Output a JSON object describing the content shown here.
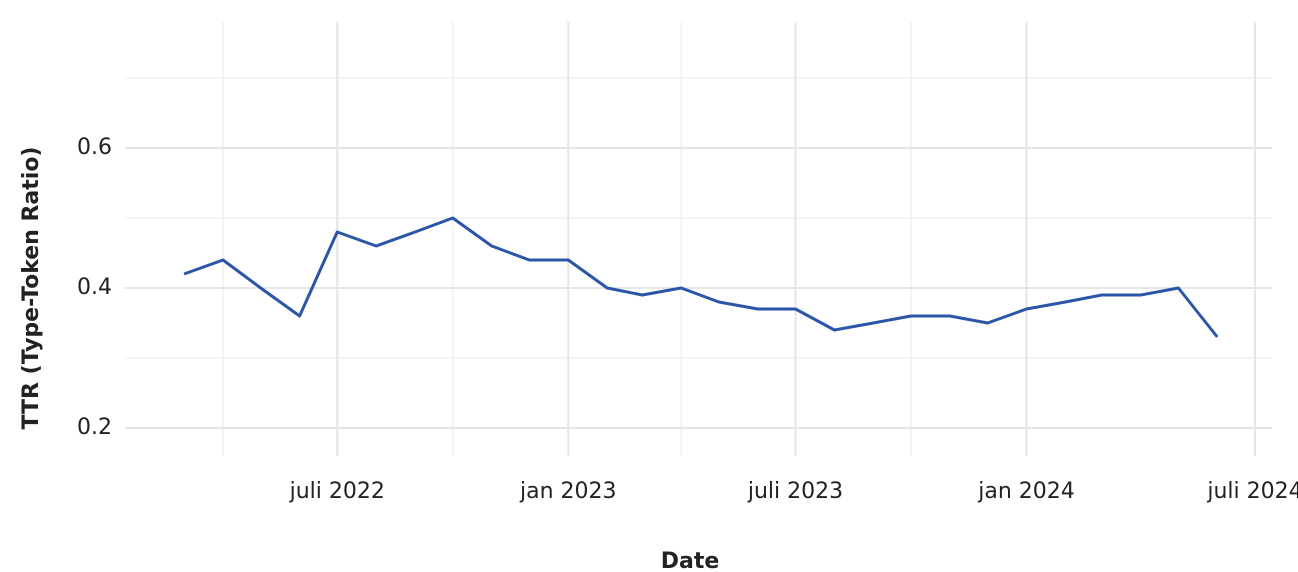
{
  "chart_data": {
    "type": "line",
    "x_title": "Date",
    "y_title": "TTR (Type-Token Ratio)",
    "x": [
      "2022-03",
      "2022-04",
      "2022-05",
      "2022-06",
      "2022-07",
      "2022-08",
      "2022-09",
      "2022-10",
      "2022-11",
      "2022-12",
      "2023-01",
      "2023-02",
      "2023-03",
      "2023-04",
      "2023-05",
      "2023-06",
      "2023-07",
      "2023-08",
      "2023-09",
      "2023-10",
      "2023-11",
      "2023-12",
      "2024-01",
      "2024-02",
      "2024-03",
      "2024-04",
      "2024-05",
      "2024-06"
    ],
    "series": [
      {
        "name": "TTR",
        "color": "#2b56a8",
        "values": [
          0.42,
          0.44,
          0.4,
          0.36,
          0.48,
          0.46,
          0.48,
          0.5,
          0.46,
          0.44,
          0.44,
          0.4,
          0.39,
          0.4,
          0.38,
          0.37,
          0.37,
          0.34,
          0.35,
          0.36,
          0.36,
          0.35,
          0.37,
          0.38,
          0.39,
          0.39,
          0.4,
          0.33
        ]
      }
    ],
    "xlim": [
      "2022-01",
      "2024-07"
    ],
    "xticks": [
      {
        "value": "2022-07",
        "label": "juli 2022"
      },
      {
        "value": "2023-01",
        "label": "jan 2023"
      },
      {
        "value": "2023-07",
        "label": "juli 2023"
      },
      {
        "value": "2024-01",
        "label": "jan 2024"
      },
      {
        "value": "2024-07",
        "label": "juli 2024"
      }
    ],
    "minor_xticks": [
      "2022-04",
      "2022-10",
      "2023-04",
      "2023-10"
    ],
    "ylim": [
      0.16,
      0.78
    ],
    "yticks": [
      0.2,
      0.4,
      0.6
    ],
    "minor_yticks": [
      0.3,
      0.5,
      0.7
    ],
    "grid": true
  }
}
